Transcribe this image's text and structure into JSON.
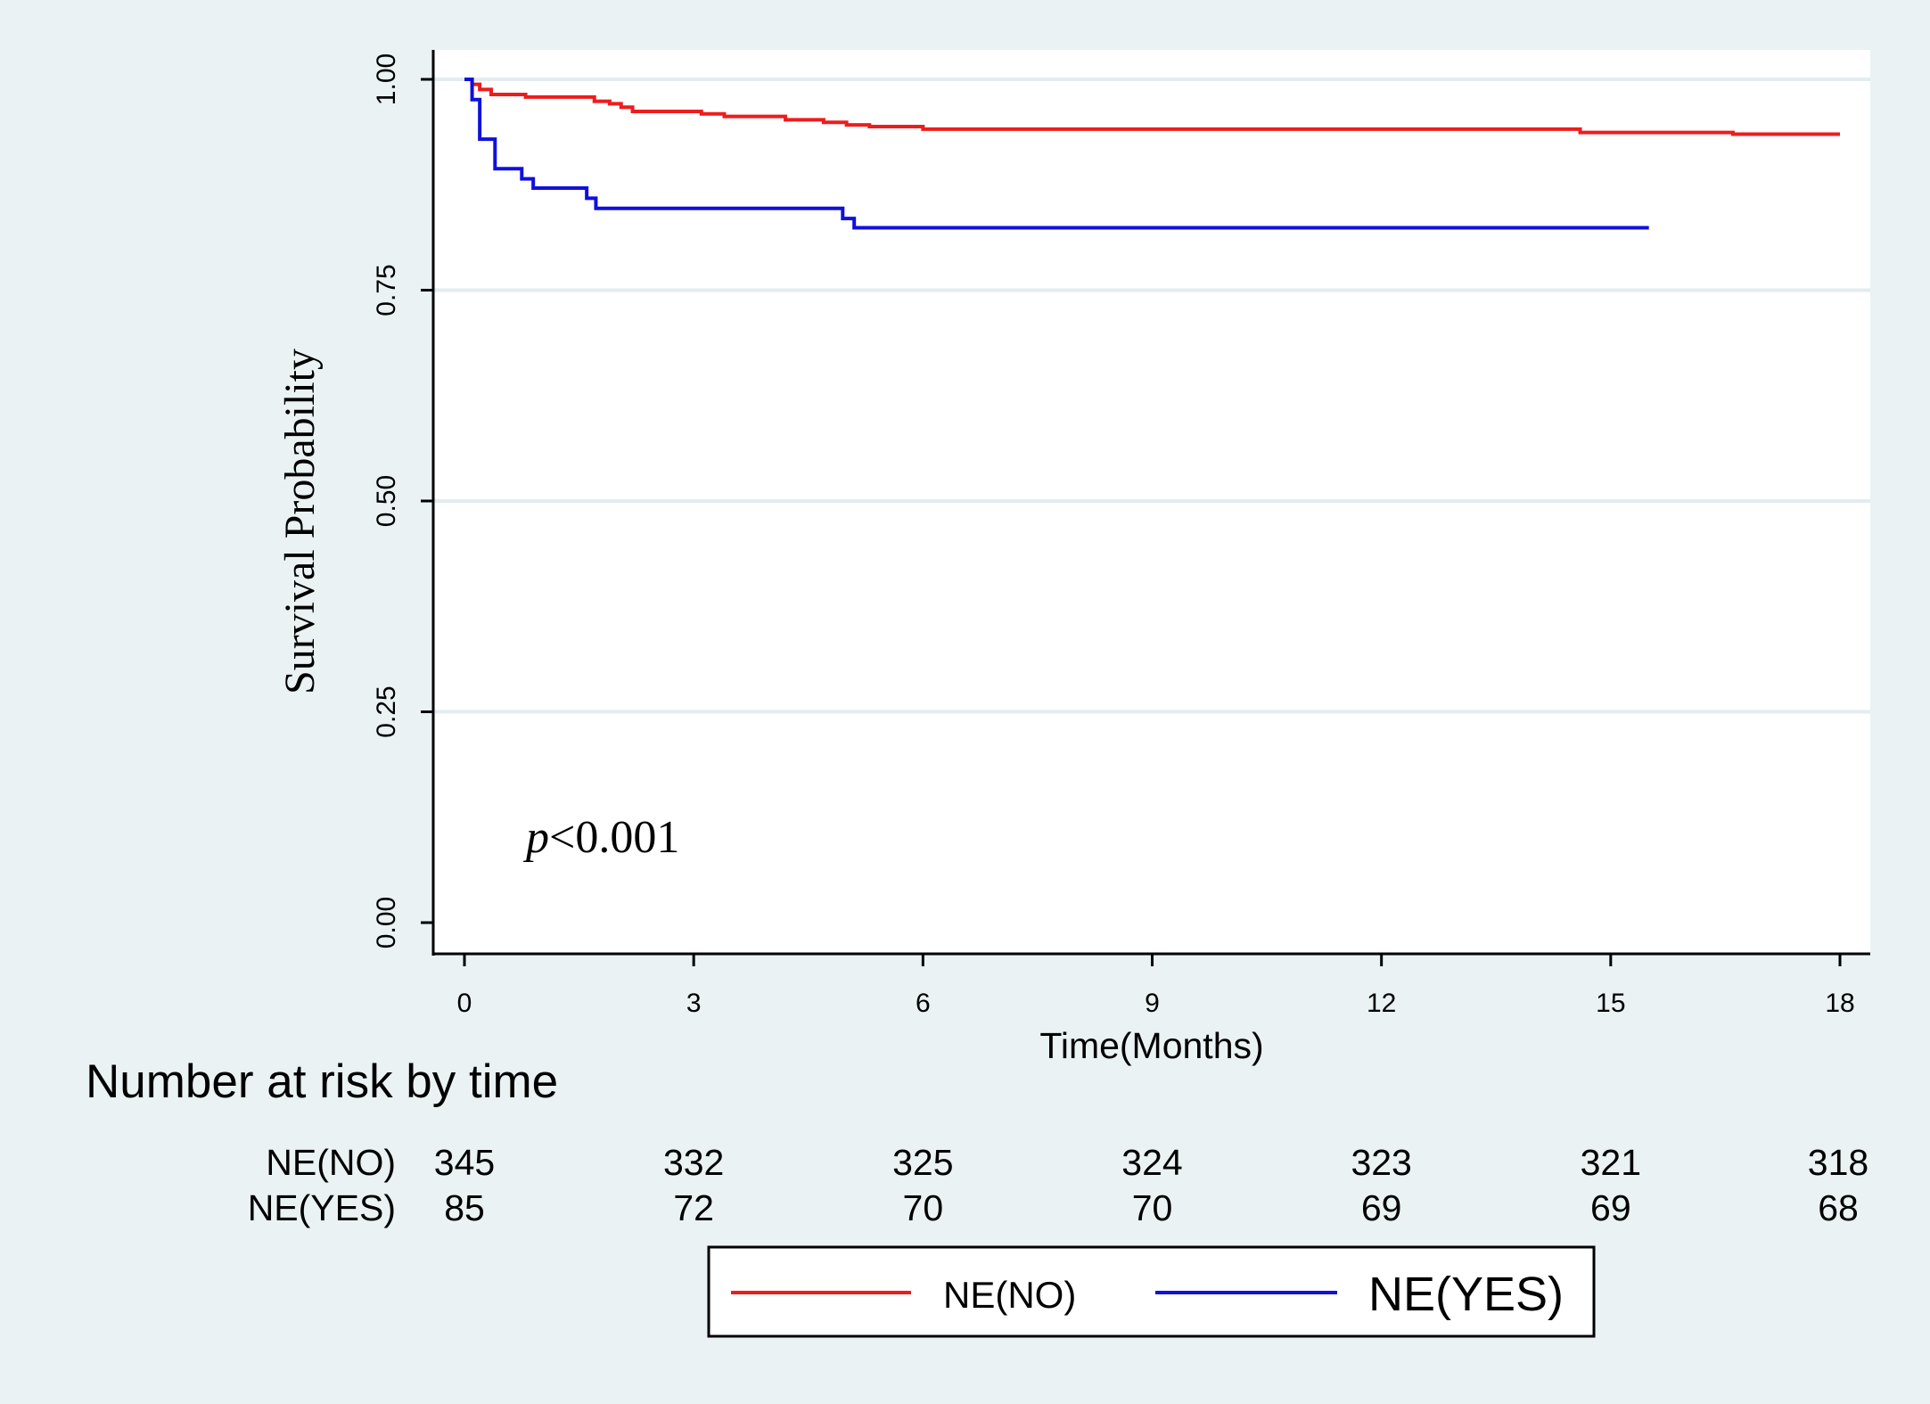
{
  "chart_data": {
    "type": "line",
    "subtype": "kaplan-meier",
    "title": "",
    "xlabel": "Time(Months)",
    "ylabel": "Survival Probability",
    "xlim": [
      0,
      18
    ],
    "ylim": [
      0,
      1
    ],
    "x_ticks": [
      0,
      3,
      6,
      9,
      12,
      15,
      18
    ],
    "x_tick_labels": [
      "0",
      "3",
      "6",
      "9",
      "12",
      "15",
      "18"
    ],
    "y_ticks": [
      0,
      0.25,
      0.5,
      0.75,
      1
    ],
    "y_tick_labels": [
      "0.00",
      "0.25",
      "0.50",
      "0.75",
      "1.00"
    ],
    "grid": "horizontal",
    "annotation": {
      "italic": "p",
      "rest": "<0.001"
    },
    "series": [
      {
        "name": "NE(NO)",
        "color": "#ee1c1c",
        "steps": [
          [
            0,
            1.0
          ],
          [
            0.1,
            0.994
          ],
          [
            0.2,
            0.988
          ],
          [
            0.35,
            0.982
          ],
          [
            0.8,
            0.979
          ],
          [
            1.7,
            0.974
          ],
          [
            1.9,
            0.971
          ],
          [
            2.05,
            0.967
          ],
          [
            2.2,
            0.962
          ],
          [
            3.1,
            0.959
          ],
          [
            3.4,
            0.956
          ],
          [
            4.2,
            0.952
          ],
          [
            4.7,
            0.949
          ],
          [
            5.0,
            0.946
          ],
          [
            5.3,
            0.944
          ],
          [
            6.0,
            0.941
          ],
          [
            14.6,
            0.937
          ],
          [
            16.6,
            0.935
          ],
          [
            18.0,
            0.935
          ]
        ]
      },
      {
        "name": "NE(YES)",
        "color": "#1010dd",
        "steps": [
          [
            0,
            1.0
          ],
          [
            0.1,
            0.976
          ],
          [
            0.2,
            0.929
          ],
          [
            0.4,
            0.894
          ],
          [
            0.75,
            0.882
          ],
          [
            0.9,
            0.871
          ],
          [
            1.6,
            0.859
          ],
          [
            1.72,
            0.847
          ],
          [
            4.95,
            0.835
          ],
          [
            5.1,
            0.824
          ],
          [
            15.5,
            0.824
          ]
        ]
      }
    ],
    "risk_table": {
      "title": "Number at risk by time",
      "times": [
        0,
        3,
        6,
        9,
        12,
        15,
        18
      ],
      "rows": [
        {
          "label": "NE(NO)",
          "counts": [
            "345",
            "332",
            "325",
            "324",
            "323",
            "321",
            "318"
          ]
        },
        {
          "label": "NE(YES)",
          "counts": [
            "85",
            "72",
            "70",
            "70",
            "69",
            "69",
            "68"
          ]
        }
      ]
    },
    "legend": [
      "NE(NO)",
      "NE(YES)"
    ],
    "legend_position": "bottom-center"
  }
}
